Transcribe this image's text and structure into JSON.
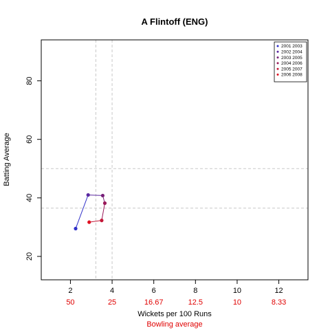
{
  "chart_data": {
    "type": "line",
    "title": "A Flintoff (ENG)",
    "xlabel": "Wickets per 100 Runs",
    "ylabel": "Batting Average",
    "secondary_xlabel": "Bowling average",
    "xlim": [
      0.6,
      13.4
    ],
    "ylim": [
      12,
      94
    ],
    "x_ticks": [
      2,
      4,
      6,
      8,
      10,
      12
    ],
    "x_tick_labels": [
      "2",
      "4",
      "6",
      "8",
      "10",
      "12"
    ],
    "secondary_x_tick_labels": [
      "50",
      "25",
      "16.67",
      "12.5",
      "10",
      "8.33"
    ],
    "y_ticks": [
      20,
      40,
      60,
      80
    ],
    "y_tick_labels": [
      "20",
      "40",
      "60",
      "80"
    ],
    "reference_lines": {
      "vertical": [
        3.22,
        4.0
      ],
      "horizontal": [
        36.5,
        50.0
      ]
    },
    "grid": false,
    "legend_position": "top-right",
    "series": [
      {
        "name": "2001 2003",
        "x": 2.25,
        "y": 29.5,
        "color": "#3030c8"
      },
      {
        "name": "2002 2004",
        "x": 2.85,
        "y": 41.0,
        "color": "#5a28a0"
      },
      {
        "name": "2003 2005",
        "x": 3.55,
        "y": 40.8,
        "color": "#782078"
      },
      {
        "name": "2004 2006",
        "x": 3.65,
        "y": 38.2,
        "color": "#9a1a5a"
      },
      {
        "name": "2005 2007",
        "x": 3.5,
        "y": 32.3,
        "color": "#c41838"
      },
      {
        "name": "2006 2008",
        "x": 2.9,
        "y": 31.7,
        "color": "#e01020"
      }
    ],
    "path_color": "#2020c0",
    "path_color_end": "#e00010",
    "secondary_tick_color": "#e00000",
    "reference_line_color": "#c8c8c8"
  }
}
